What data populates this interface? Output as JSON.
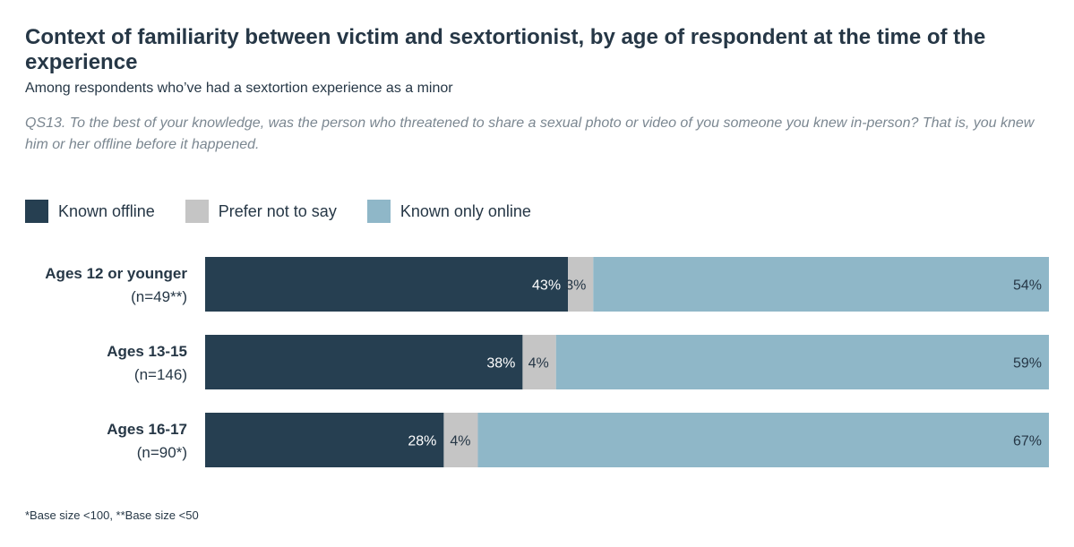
{
  "title": "Context of familiarity between victim and sextortionist, by age of respondent at the time of the experience",
  "subtitle": "Among respondents who’ve had a sextortion experience as a minor",
  "question": "QS13. To the best of your knowledge, was the person who threatened to share a sexual photo or video of you someone you knew in-person? That is, you knew him or her offline before it happened.",
  "footnote": "*Base size <100, **Base size <50",
  "legend": [
    {
      "label": "Known offline",
      "color": "#263f51"
    },
    {
      "label": "Prefer not to say",
      "color": "#c5c5c5"
    },
    {
      "label": "Known only online",
      "color": "#8fb7c8"
    }
  ],
  "chart_data": {
    "type": "bar",
    "orientation": "horizontal",
    "stacked": true,
    "percent_stacked": true,
    "categories": [
      {
        "label": "Ages 12 or younger",
        "n_label": "(n=49**)"
      },
      {
        "label": "Ages 13-15",
        "n_label": "(n=146)"
      },
      {
        "label": "Ages 16-17",
        "n_label": "(n=90*)"
      }
    ],
    "series": [
      {
        "name": "Known offline",
        "color": "#263f51",
        "text_color": "#ffffff",
        "values": [
          43,
          38,
          28
        ],
        "labels": [
          "43%",
          "38%",
          "28%"
        ]
      },
      {
        "name": "Prefer not to say",
        "color": "#c5c5c5",
        "text_color": "#263746",
        "values": [
          3,
          4,
          4
        ],
        "labels": [
          "3%",
          "4%",
          "4%"
        ]
      },
      {
        "name": "Known only online",
        "color": "#8fb7c8",
        "text_color": "#263746",
        "values": [
          54,
          59,
          67
        ],
        "labels": [
          "54%",
          "59%",
          "67%"
        ]
      }
    ],
    "legend_position": "top-left",
    "grid": false
  }
}
